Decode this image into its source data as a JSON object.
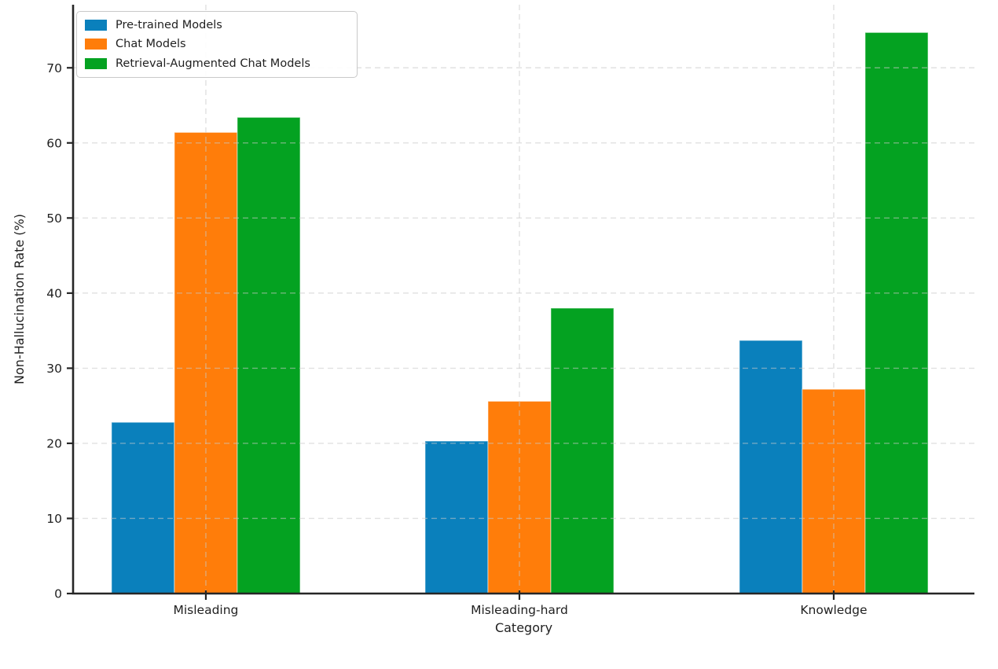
{
  "chart_data": {
    "type": "bar",
    "title": "",
    "xlabel": "Category",
    "ylabel": "Non-Hallucination Rate (%)",
    "categories": [
      "Misleading",
      "Misleading-hard",
      "Knowledge"
    ],
    "series": [
      {
        "name": "Pre-trained Models",
        "color": "#0a80bc",
        "values": [
          22.8,
          20.3,
          33.7
        ]
      },
      {
        "name": "Chat Models",
        "color": "#ff7d0a",
        "values": [
          61.4,
          25.6,
          27.2
        ]
      },
      {
        "name": "Retrieval-Augmented Chat Models",
        "color": "#04a221",
        "values": [
          63.4,
          38.0,
          74.7
        ]
      }
    ],
    "ylim": [
      0,
      78.4
    ],
    "yticks": [
      0,
      10,
      20,
      30,
      40,
      50,
      60,
      70
    ],
    "grid": "both-dashed",
    "legend_position": "upper-left",
    "colors": {
      "text": "#1f1f1f",
      "spine": "#262626",
      "gridline": "#c8c8c8",
      "legend_border": "#c9c9c9"
    }
  }
}
